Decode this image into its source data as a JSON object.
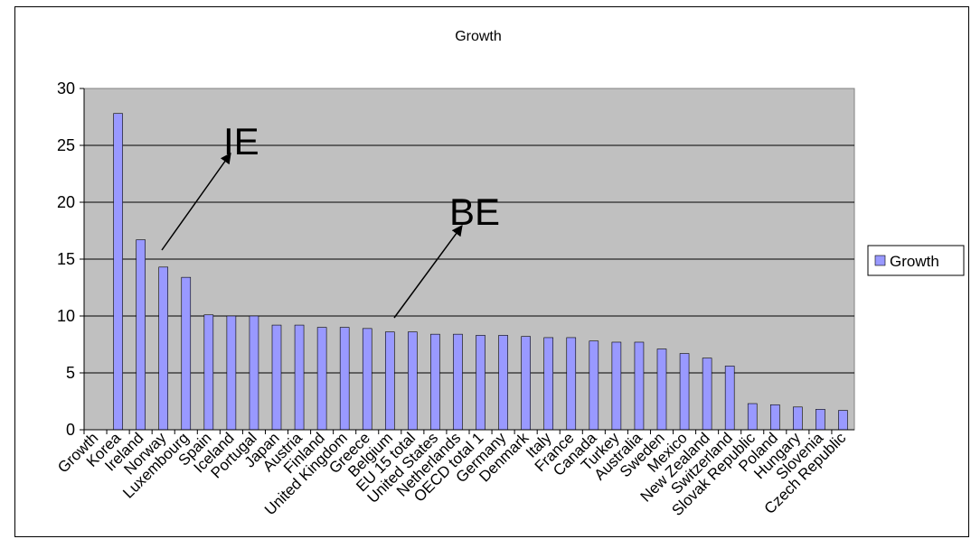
{
  "chart_data": {
    "type": "bar",
    "title": "Growth",
    "xlabel": "",
    "ylabel": "",
    "ylim": [
      0,
      30
    ],
    "yticks": [
      0,
      5,
      10,
      15,
      20,
      25,
      30
    ],
    "grid": true,
    "legend_position": "right",
    "categories": [
      "Growth",
      "Korea",
      "Ireland",
      "Norway",
      "Luxembourg",
      "Spain",
      "Iceland",
      "Portugal",
      "Japan",
      "Austria",
      "Finland",
      "United Kingdom",
      "Greece",
      "Belgium",
      "EU 15 total",
      "United States",
      "Netherlands",
      "OECD total 1",
      "Germany",
      "Denmark",
      "Italy",
      "France",
      "Canada",
      "Turkey",
      "Australia",
      "Sweden",
      "Mexico",
      "New Zealand",
      "Switzerland",
      "Slovak Republic",
      "Poland",
      "Hungary",
      "Slovenia",
      "Czech Republic"
    ],
    "series": [
      {
        "name": "Growth",
        "color": "#9999ff",
        "values": [
          null,
          27.8,
          16.7,
          14.3,
          13.4,
          10.1,
          10.0,
          10.0,
          9.2,
          9.2,
          9.0,
          9.0,
          8.9,
          8.6,
          8.6,
          8.4,
          8.4,
          8.3,
          8.3,
          8.2,
          8.1,
          8.1,
          7.8,
          7.7,
          7.7,
          7.1,
          6.7,
          6.3,
          5.6,
          2.3,
          2.2,
          2.0,
          1.8,
          1.7
        ]
      }
    ],
    "annotations": [
      {
        "text": "IE",
        "x": "Korea",
        "y": 25
      },
      {
        "text": "BE",
        "x": "EU 15 total",
        "y": 19
      }
    ]
  }
}
